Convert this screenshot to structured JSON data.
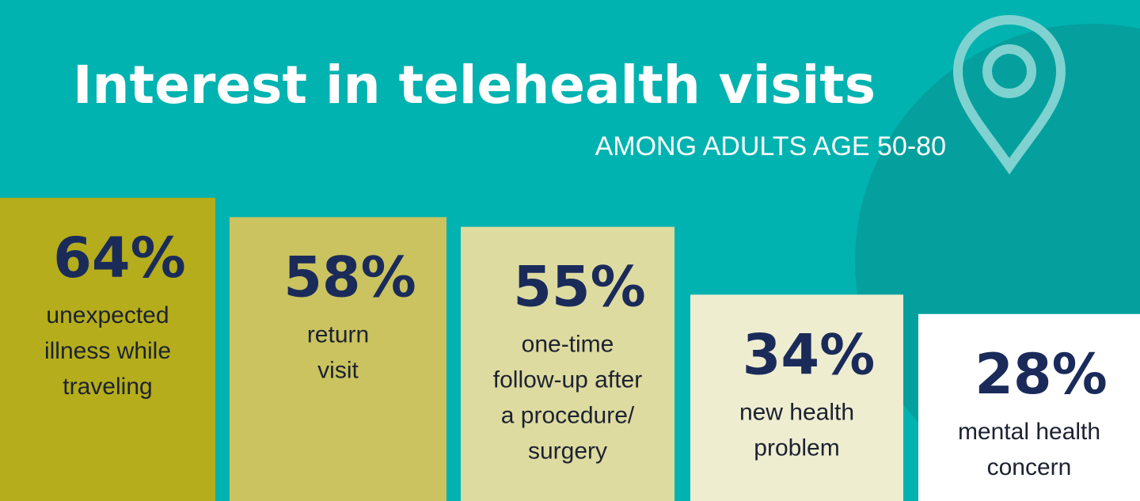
{
  "chart_data": {
    "type": "bar",
    "title": "Interest in telehealth visits",
    "subtitle": "AMONG ADULTS AGE 50-80",
    "categories": [
      [
        "unexpected",
        "illness while",
        "traveling"
      ],
      [
        "return",
        "visit"
      ],
      [
        "one-time",
        "follow-up after",
        "a procedure/",
        "surgery"
      ],
      [
        "new health",
        "problem"
      ],
      [
        "mental health",
        "concern"
      ]
    ],
    "values": [
      64,
      58,
      55,
      34,
      28
    ],
    "value_labels": [
      "64%",
      "58%",
      "55%",
      "34%",
      "28%"
    ],
    "colors": [
      "#b5ad1b",
      "#cac35f",
      "#dedba0",
      "#eeedd0",
      "#ffffff"
    ]
  }
}
